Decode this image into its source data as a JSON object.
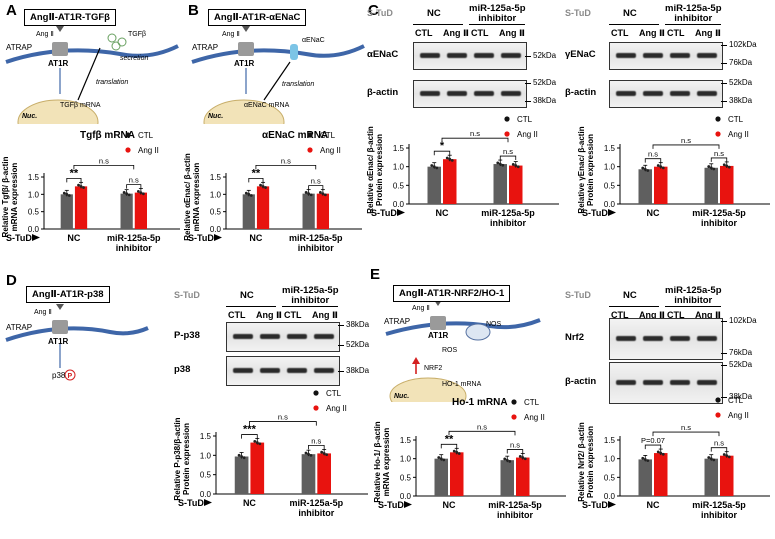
{
  "colors": {
    "ctl": "#5f5f5f",
    "ang": "#e8130f",
    "membrane": "#3e66a8",
    "nucleus": "#f2e3b8",
    "arrow_up": "#d42020"
  },
  "panels": {
    "A": {
      "letter": "A",
      "title": "AngⅡ-AT1R-TGFβ",
      "diagram": {
        "ang": "Ang Ⅱ",
        "atrap": "ATRAP",
        "at1r": "AT1R",
        "target": "TGFβ",
        "secretion": "secretion",
        "translation": "translation",
        "mrna": "TGFβ mRNA",
        "nuc": "Nuc."
      }
    },
    "B": {
      "letter": "B",
      "title": "AngⅡ-AT1R-αENaC",
      "diagram": {
        "ang": "Ang Ⅱ",
        "atrap": "ATRAP",
        "at1r": "AT1R",
        "target": "αENaC",
        "translation": "translation",
        "mrna": "αENaC mRNA",
        "nuc": "Nuc."
      }
    },
    "C": {
      "letter": "C"
    },
    "D": {
      "letter": "D",
      "title": "AngⅡ-AT1R-p38",
      "diagram": {
        "ang": "Ang Ⅱ",
        "atrap": "ATRAP",
        "at1r": "AT1R",
        "target": "p38",
        "p": "P"
      }
    },
    "E": {
      "letter": "E",
      "title": "AngⅡ-AT1R-NRF2/HO-1",
      "diagram": {
        "ang": "Ang Ⅱ",
        "atrap": "ATRAP",
        "at1r": "AT1R",
        "nos": "NOS",
        "ros": "ROS",
        "nrf2": "NRF2",
        "mrna": "HO-1 mRNA",
        "nuc": "Nuc."
      }
    }
  },
  "blots": {
    "C1": {
      "header_stud": "S-TuD",
      "header_nc": "NC",
      "header_mir": "miR-125a-5p\ninhibitor",
      "lanes": [
        "CTL",
        "Ang Ⅱ",
        "CTL",
        "Ang Ⅱ"
      ],
      "rows": [
        {
          "label": "αENaC",
          "markers": [
            "52kDa"
          ]
        },
        {
          "label": "β-actin",
          "markers": [
            "52kDa",
            "38kDa"
          ]
        }
      ]
    },
    "C2": {
      "header_stud": "S-TuD",
      "header_nc": "NC",
      "header_mir": "miR-125a-5p\ninhibitor",
      "lanes": [
        "CTL",
        "Ang Ⅱ",
        "CTL",
        "Ang Ⅱ"
      ],
      "rows": [
        {
          "label": "γENaC",
          "markers": [
            "102kDa",
            "76kDa"
          ]
        },
        {
          "label": "β-actin",
          "markers": [
            "52kDa",
            "38kDa"
          ]
        }
      ]
    },
    "D": {
      "header_stud": "S-TuD",
      "header_nc": "NC",
      "header_mir": "miR-125a-5p\ninhibitor",
      "lanes": [
        "CTL",
        "Ang Ⅱ",
        "CTL",
        "Ang Ⅱ"
      ],
      "rows": [
        {
          "label": "P-p38",
          "markers": [
            "38kDa",
            "52kDa"
          ]
        },
        {
          "label": "p38",
          "markers": [
            "38kDa"
          ]
        }
      ]
    },
    "E": {
      "header_stud": "S-TuD",
      "header_nc": "NC",
      "header_mir": "miR-125a-5p\ninhibitor",
      "lanes": [
        "CTL",
        "Ang Ⅱ",
        "CTL",
        "Ang Ⅱ"
      ],
      "rows": [
        {
          "label": "Nrf2",
          "markers": [
            "102kDa",
            "76kDa"
          ]
        },
        {
          "label": "β-actin",
          "markers": [
            "52kDa",
            "38kDa"
          ]
        }
      ]
    }
  },
  "chart_data": [
    {
      "id": "A",
      "type": "bar",
      "title": "Tgfβ mRNA",
      "ylabel": "Relative Tgfβ/ β-actin\nmRNA expression",
      "ylim": [
        0,
        1.5
      ],
      "yticks": [
        "0.0",
        "0.5",
        "1.0",
        "1.5"
      ],
      "categories": [
        "NC",
        "miR-125a-5p\ninhibitor"
      ],
      "stud_label": "S-TuD",
      "legend": [
        "CTL",
        "Ang II"
      ],
      "series": [
        {
          "name": "CTL",
          "values": [
            1.0,
            1.02
          ]
        },
        {
          "name": "Ang II",
          "values": [
            1.23,
            1.05
          ]
        }
      ],
      "sig": {
        "inner1": "**",
        "inner2": "n.s",
        "outer": "n.s"
      }
    },
    {
      "id": "B",
      "type": "bar",
      "title": "αENaC mRNA",
      "ylabel": "Relative αEnac/ β-actin\nmRNA expression",
      "ylim": [
        0,
        1.5
      ],
      "yticks": [
        "0.0",
        "0.5",
        "1.0",
        "1.5"
      ],
      "categories": [
        "NC",
        "miR-125a-5p\ninhibitor"
      ],
      "stud_label": "S-TuD",
      "legend": [
        "CTL",
        "Ang II"
      ],
      "series": [
        {
          "name": "CTL",
          "values": [
            1.0,
            1.02
          ]
        },
        {
          "name": "Ang II",
          "values": [
            1.23,
            1.02
          ]
        }
      ],
      "sig": {
        "inner1": "**",
        "inner2": "n.s",
        "outer": "n.s"
      }
    },
    {
      "id": "C1",
      "type": "bar",
      "title": "",
      "ylabel": "Relative αEnac/ β-actin\nProtein expression",
      "ylim": [
        0,
        1.5
      ],
      "yticks": [
        "0.0",
        "0.5",
        "1.0",
        "1.5"
      ],
      "categories": [
        "NC",
        "miR-125a-5p\ninhibitor"
      ],
      "stud_label": "S-TuD",
      "legend": [
        "CTL",
        "Ang II"
      ],
      "series": [
        {
          "name": "CTL",
          "values": [
            1.0,
            1.07
          ]
        },
        {
          "name": "Ang II",
          "values": [
            1.2,
            1.03
          ]
        }
      ],
      "sig": {
        "inner1": "*",
        "inner2": "n.s",
        "outer": "n.s"
      }
    },
    {
      "id": "C2",
      "type": "bar",
      "title": "",
      "ylabel": "Relative γEnac/ β-actin\nProtein expression",
      "ylim": [
        0,
        1.5
      ],
      "yticks": [
        "0.0",
        "0.5",
        "1.0",
        "1.5"
      ],
      "categories": [
        "NC",
        "miR-125a-5p\ninhibitor"
      ],
      "stud_label": "S-TuD",
      "legend": [
        "CTL",
        "Ang II"
      ],
      "series": [
        {
          "name": "CTL",
          "values": [
            0.93,
            0.97
          ]
        },
        {
          "name": "Ang II",
          "values": [
            1.0,
            1.02
          ]
        }
      ],
      "sig": {
        "inner1": "n.s",
        "inner2": "n.s",
        "outer": "n.s"
      }
    },
    {
      "id": "D",
      "type": "bar",
      "title": "",
      "ylabel": "Relative P-p38/β-actin\nProtein expression",
      "ylim": [
        0,
        1.5
      ],
      "yticks": [
        "0.0",
        "0.5",
        "1.0",
        "1.5"
      ],
      "categories": [
        "NC",
        "miR-125a-5p\ninhibitor"
      ],
      "stud_label": "S-TuD",
      "legend": [
        "CTL",
        "Ang II"
      ],
      "series": [
        {
          "name": "CTL",
          "values": [
            0.97,
            1.03
          ]
        },
        {
          "name": "Ang II",
          "values": [
            1.33,
            1.05
          ]
        }
      ],
      "sig": {
        "inner1": "***",
        "inner2": "n.s",
        "outer": "n.s"
      }
    },
    {
      "id": "E1",
      "type": "bar",
      "title": "Ho-1 mRNA",
      "ylabel": "Relative Ho-1/ β-actin\nmRNA expression",
      "ylim": [
        0,
        1.5
      ],
      "yticks": [
        "0.0",
        "0.5",
        "1.0",
        "1.5"
      ],
      "categories": [
        "NC",
        "miR-125a-5p\ninhibitor"
      ],
      "stud_label": "S-TuD",
      "legend": [
        "CTL",
        "Ang II"
      ],
      "series": [
        {
          "name": "CTL",
          "values": [
            1.0,
            0.96
          ]
        },
        {
          "name": "Ang II",
          "values": [
            1.17,
            1.03
          ]
        }
      ],
      "sig": {
        "inner1": "**",
        "inner2": "n.s",
        "outer": "n.s"
      }
    },
    {
      "id": "E2",
      "type": "bar",
      "title": "",
      "ylabel": "Relative Nrf2/ β-actin\nProtein expression",
      "ylim": [
        0,
        1.5
      ],
      "yticks": [
        "0.0",
        "0.5",
        "1.0",
        "1.5"
      ],
      "categories": [
        "NC",
        "miR-125a-5p\ninhibitor"
      ],
      "stud_label": "S-TuD",
      "legend": [
        "CTL",
        "Ang II"
      ],
      "series": [
        {
          "name": "CTL",
          "values": [
            0.98,
            1.0
          ]
        },
        {
          "name": "Ang II",
          "values": [
            1.15,
            1.08
          ]
        }
      ],
      "sig": {
        "inner1": "P=0.07",
        "inner2": "n.s",
        "outer": "n.s"
      }
    }
  ]
}
